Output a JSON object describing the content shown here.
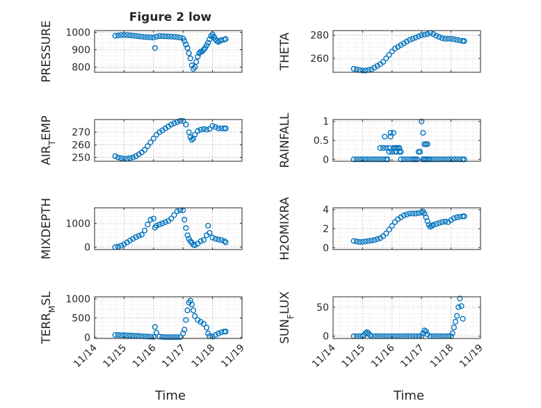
{
  "figure": {
    "title": "Figure 2 low",
    "xlabel": "Time",
    "xticklabels": [
      "11/14",
      "11/15",
      "11/16",
      "11/17",
      "11/18",
      "11/19"
    ],
    "marker_color": "#0072BD"
  },
  "chart_data": [
    {
      "type": "scatter",
      "name": "pressure",
      "ylabel_main": "PRESSURE",
      "ylabel_sub": "",
      "ylim": [
        770,
        1010
      ],
      "yticks": [
        800,
        900,
        1000
      ],
      "yticklabels": [
        "800",
        "900",
        "1000"
      ],
      "x": [
        14.7,
        14.8,
        14.9,
        15.0,
        15.1,
        15.2,
        15.3,
        15.4,
        15.5,
        15.6,
        15.7,
        15.8,
        15.9,
        16.0,
        16.05,
        16.1,
        16.2,
        16.3,
        16.4,
        16.5,
        16.6,
        16.7,
        16.8,
        16.9,
        17.0,
        17.05,
        17.1,
        17.15,
        17.2,
        17.25,
        17.3,
        17.35,
        17.4,
        17.45,
        17.5,
        17.55,
        17.6,
        17.65,
        17.7,
        17.75,
        17.8,
        17.85,
        17.9,
        17.95,
        18.0,
        18.05,
        18.1,
        18.15,
        18.2,
        18.25,
        18.3,
        18.4,
        18.45
      ],
      "y": [
        980,
        982,
        984,
        985,
        984,
        983,
        981,
        979,
        977,
        975,
        973,
        972,
        971,
        970,
        910,
        975,
        978,
        978,
        977,
        976,
        975,
        974,
        972,
        970,
        965,
        950,
        930,
        910,
        880,
        850,
        810,
        790,
        800,
        830,
        860,
        880,
        888,
        890,
        900,
        910,
        925,
        940,
        960,
        978,
        988,
        975,
        960,
        950,
        945,
        950,
        955,
        958,
        962
      ]
    },
    {
      "type": "scatter",
      "name": "theta",
      "ylabel_main": "THETA",
      "ylabel_sub": "",
      "ylim": [
        248,
        284
      ],
      "yticks": [
        260,
        280
      ],
      "yticklabels": [
        "260",
        "280"
      ],
      "x": [
        14.7,
        14.8,
        14.9,
        15.0,
        15.1,
        15.2,
        15.3,
        15.4,
        15.5,
        15.6,
        15.7,
        15.8,
        15.9,
        16.0,
        16.1,
        16.2,
        16.3,
        16.4,
        16.5,
        16.6,
        16.7,
        16.8,
        16.9,
        17.0,
        17.1,
        17.2,
        17.3,
        17.4,
        17.5,
        17.6,
        17.7,
        17.8,
        17.9,
        18.0,
        18.1,
        18.2,
        18.3,
        18.4,
        18.45
      ],
      "y": [
        251,
        250.5,
        250,
        249.5,
        249.5,
        250,
        250.5,
        252,
        253.5,
        255,
        257,
        260,
        263,
        266,
        268.5,
        270,
        271.5,
        273,
        274.5,
        276,
        277,
        278,
        279,
        280,
        280.5,
        281,
        282,
        281,
        279.5,
        278.5,
        277.5,
        277,
        277,
        277,
        276.5,
        276,
        275.5,
        275,
        275
      ]
    },
    {
      "type": "scatter",
      "name": "air_temp",
      "ylabel_main": "AIR",
      "ylabel_sub": "T",
      "ylabel_suffix": "EMP",
      "ylim": [
        247,
        280
      ],
      "yticks": [
        250,
        260,
        270
      ],
      "yticklabels": [
        "250",
        "260",
        "270"
      ],
      "x": [
        14.7,
        14.8,
        14.9,
        15.0,
        15.1,
        15.2,
        15.3,
        15.4,
        15.5,
        15.6,
        15.7,
        15.8,
        15.9,
        16.0,
        16.1,
        16.2,
        16.3,
        16.4,
        16.5,
        16.6,
        16.7,
        16.8,
        16.9,
        17.0,
        17.1,
        17.2,
        17.25,
        17.3,
        17.35,
        17.4,
        17.5,
        17.6,
        17.7,
        17.8,
        17.9,
        18.0,
        18.1,
        18.2,
        18.3,
        18.4,
        18.45
      ],
      "y": [
        251,
        250,
        249.5,
        249,
        249,
        249.5,
        250,
        251,
        252.5,
        254,
        256,
        259,
        262,
        265,
        268,
        270,
        271.5,
        273,
        274.5,
        276,
        277,
        278,
        279,
        279,
        276,
        270,
        266,
        264,
        265,
        268,
        271,
        272,
        272.5,
        272,
        272.5,
        275,
        274,
        273,
        273,
        273,
        273
      ]
    },
    {
      "type": "scatter",
      "name": "rainfall",
      "ylabel_main": "RAINFALL",
      "ylabel_sub": "",
      "ylim": [
        -0.05,
        1.05
      ],
      "yticks": [
        0,
        0.5,
        1
      ],
      "yticklabels": [
        "0",
        "0.5",
        "1"
      ],
      "x": [
        14.7,
        14.8,
        14.9,
        15.0,
        15.1,
        15.2,
        15.3,
        15.4,
        15.5,
        15.6,
        15.7,
        15.8,
        15.85,
        15.9,
        15.95,
        16.0,
        16.05,
        16.1,
        16.15,
        16.2,
        16.25,
        16.3,
        16.4,
        16.5,
        16.6,
        16.7,
        16.75,
        16.8,
        16.85,
        16.9,
        16.95,
        17.0,
        17.05,
        17.1,
        17.15,
        17.2,
        17.3,
        17.4,
        17.5,
        17.6,
        17.7,
        17.8,
        17.9,
        18.0,
        18.1,
        18.2,
        18.3,
        18.4,
        18.45,
        15.6,
        15.7,
        15.8,
        15.9,
        16.0,
        16.1,
        15.75,
        15.95,
        16.05,
        16.15,
        16.25,
        16.3,
        17.05,
        17.1,
        17.15,
        17.2,
        17.25
      ],
      "y": [
        0,
        0,
        0,
        0,
        0,
        0,
        0,
        0,
        0,
        0,
        0,
        0,
        0,
        0.2,
        0.7,
        0.2,
        0.7,
        0.3,
        0.2,
        0.3,
        0.2,
        0.2,
        0,
        0,
        0,
        0,
        0,
        0,
        0,
        0.2,
        0.2,
        1,
        0.7,
        0.4,
        0.4,
        0.4,
        0,
        0,
        0,
        0,
        0,
        0,
        0,
        0,
        0,
        0,
        0,
        0,
        0,
        0.3,
        0.3,
        0.3,
        0.3,
        0.2,
        0.2,
        0.6,
        0.6,
        0.3,
        0.3,
        0.3,
        0,
        0,
        0,
        0,
        0,
        0
      ]
    },
    {
      "type": "scatter",
      "name": "mixdepth",
      "ylabel_main": "MIXDEPTH",
      "ylabel_sub": "",
      "ylim": [
        -100,
        1650
      ],
      "yticks": [
        0,
        1000
      ],
      "yticklabels": [
        "0",
        "1000"
      ],
      "x": [
        14.7,
        14.8,
        14.9,
        15.0,
        15.1,
        15.2,
        15.3,
        15.4,
        15.5,
        15.6,
        15.7,
        15.8,
        15.9,
        16.0,
        16.05,
        16.1,
        16.2,
        16.3,
        16.4,
        16.5,
        16.6,
        16.7,
        16.8,
        16.9,
        17.0,
        17.05,
        17.1,
        17.15,
        17.2,
        17.25,
        17.3,
        17.35,
        17.4,
        17.5,
        17.6,
        17.7,
        17.8,
        17.85,
        17.9,
        18.0,
        18.1,
        18.2,
        18.3,
        18.4,
        18.45
      ],
      "y": [
        0,
        20,
        60,
        120,
        200,
        280,
        350,
        420,
        480,
        520,
        700,
        950,
        1150,
        1200,
        820,
        900,
        950,
        1000,
        1050,
        1100,
        1200,
        1350,
        1500,
        1550,
        1550,
        1150,
        800,
        500,
        350,
        250,
        180,
        100,
        80,
        150,
        250,
        300,
        500,
        900,
        600,
        400,
        350,
        320,
        300,
        250,
        200
      ]
    },
    {
      "type": "scatter",
      "name": "h2omixra",
      "ylabel_main": "H2OMIXRA",
      "ylabel_sub": "",
      "ylim": [
        -0.2,
        4.2
      ],
      "yticks": [
        0,
        2,
        4
      ],
      "yticklabels": [
        "0",
        "2",
        "4"
      ],
      "x": [
        14.7,
        14.8,
        14.9,
        15.0,
        15.1,
        15.2,
        15.3,
        15.4,
        15.5,
        15.6,
        15.7,
        15.8,
        15.9,
        16.0,
        16.1,
        16.2,
        16.3,
        16.4,
        16.5,
        16.6,
        16.7,
        16.8,
        16.9,
        17.0,
        17.05,
        17.1,
        17.15,
        17.2,
        17.25,
        17.3,
        17.35,
        17.4,
        17.5,
        17.6,
        17.7,
        17.8,
        17.9,
        18.0,
        18.1,
        18.2,
        18.3,
        18.4,
        18.45
      ],
      "y": [
        0.7,
        0.65,
        0.6,
        0.6,
        0.65,
        0.7,
        0.75,
        0.8,
        0.9,
        1.0,
        1.2,
        1.5,
        1.9,
        2.3,
        2.7,
        3.0,
        3.2,
        3.4,
        3.5,
        3.6,
        3.6,
        3.6,
        3.65,
        3.7,
        3.8,
        3.6,
        3.2,
        2.8,
        2.4,
        2.2,
        2.3,
        2.4,
        2.5,
        2.6,
        2.7,
        2.75,
        2.7,
        2.9,
        3.1,
        3.2,
        3.25,
        3.3,
        3.3
      ]
    },
    {
      "type": "scatter",
      "name": "terr_msl",
      "ylabel_main": "TERR",
      "ylabel_sub": "M",
      "ylabel_suffix": "SL",
      "ylim": [
        -30,
        1050
      ],
      "yticks": [
        0,
        500,
        1000
      ],
      "yticklabels": [
        "0",
        "500",
        "1000"
      ],
      "x": [
        14.7,
        14.8,
        14.9,
        15.0,
        15.1,
        15.2,
        15.3,
        15.4,
        15.5,
        15.6,
        15.7,
        15.8,
        15.9,
        16.0,
        16.05,
        16.1,
        16.2,
        16.3,
        16.4,
        16.5,
        16.6,
        16.7,
        16.8,
        16.9,
        17.0,
        17.05,
        17.1,
        17.15,
        17.2,
        17.25,
        17.3,
        17.35,
        17.4,
        17.5,
        17.6,
        17.7,
        17.8,
        17.85,
        17.9,
        18.0,
        18.1,
        18.2,
        18.3,
        18.4,
        18.45
      ],
      "y": [
        60,
        60,
        55,
        55,
        50,
        50,
        45,
        40,
        35,
        30,
        25,
        20,
        15,
        10,
        270,
        120,
        20,
        10,
        5,
        5,
        5,
        5,
        5,
        5,
        100,
        200,
        450,
        700,
        900,
        950,
        850,
        700,
        550,
        450,
        400,
        350,
        250,
        100,
        30,
        20,
        60,
        100,
        130,
        150,
        150
      ]
    },
    {
      "type": "scatter",
      "name": "sun_flux",
      "ylabel_main": "SUN",
      "ylabel_sub": "F",
      "ylabel_suffix": "LUX",
      "ylim": [
        -4,
        68
      ],
      "yticks": [
        0,
        50
      ],
      "yticklabels": [
        "0",
        "50"
      ],
      "x": [
        14.7,
        14.8,
        14.9,
        15.0,
        15.05,
        15.1,
        15.15,
        15.2,
        15.25,
        15.3,
        15.4,
        15.5,
        15.6,
        15.7,
        15.8,
        15.9,
        16.0,
        16.1,
        16.2,
        16.3,
        16.4,
        16.5,
        16.6,
        16.7,
        16.8,
        16.9,
        17.0,
        17.05,
        17.1,
        17.15,
        17.2,
        17.3,
        17.4,
        17.5,
        17.6,
        17.7,
        17.8,
        17.9,
        18.0,
        18.05,
        18.1,
        18.15,
        18.2,
        18.25,
        18.3,
        18.35,
        18.4
      ],
      "y": [
        0,
        0,
        0,
        0,
        2,
        5,
        7,
        5,
        2,
        0,
        0,
        0,
        0,
        0,
        0,
        0,
        0,
        0,
        0,
        0,
        0,
        0,
        0,
        0,
        0,
        0,
        0,
        5,
        10,
        8,
        3,
        0,
        0,
        0,
        0,
        0,
        0,
        0,
        0,
        5,
        15,
        25,
        35,
        50,
        65,
        52,
        30
      ]
    }
  ]
}
